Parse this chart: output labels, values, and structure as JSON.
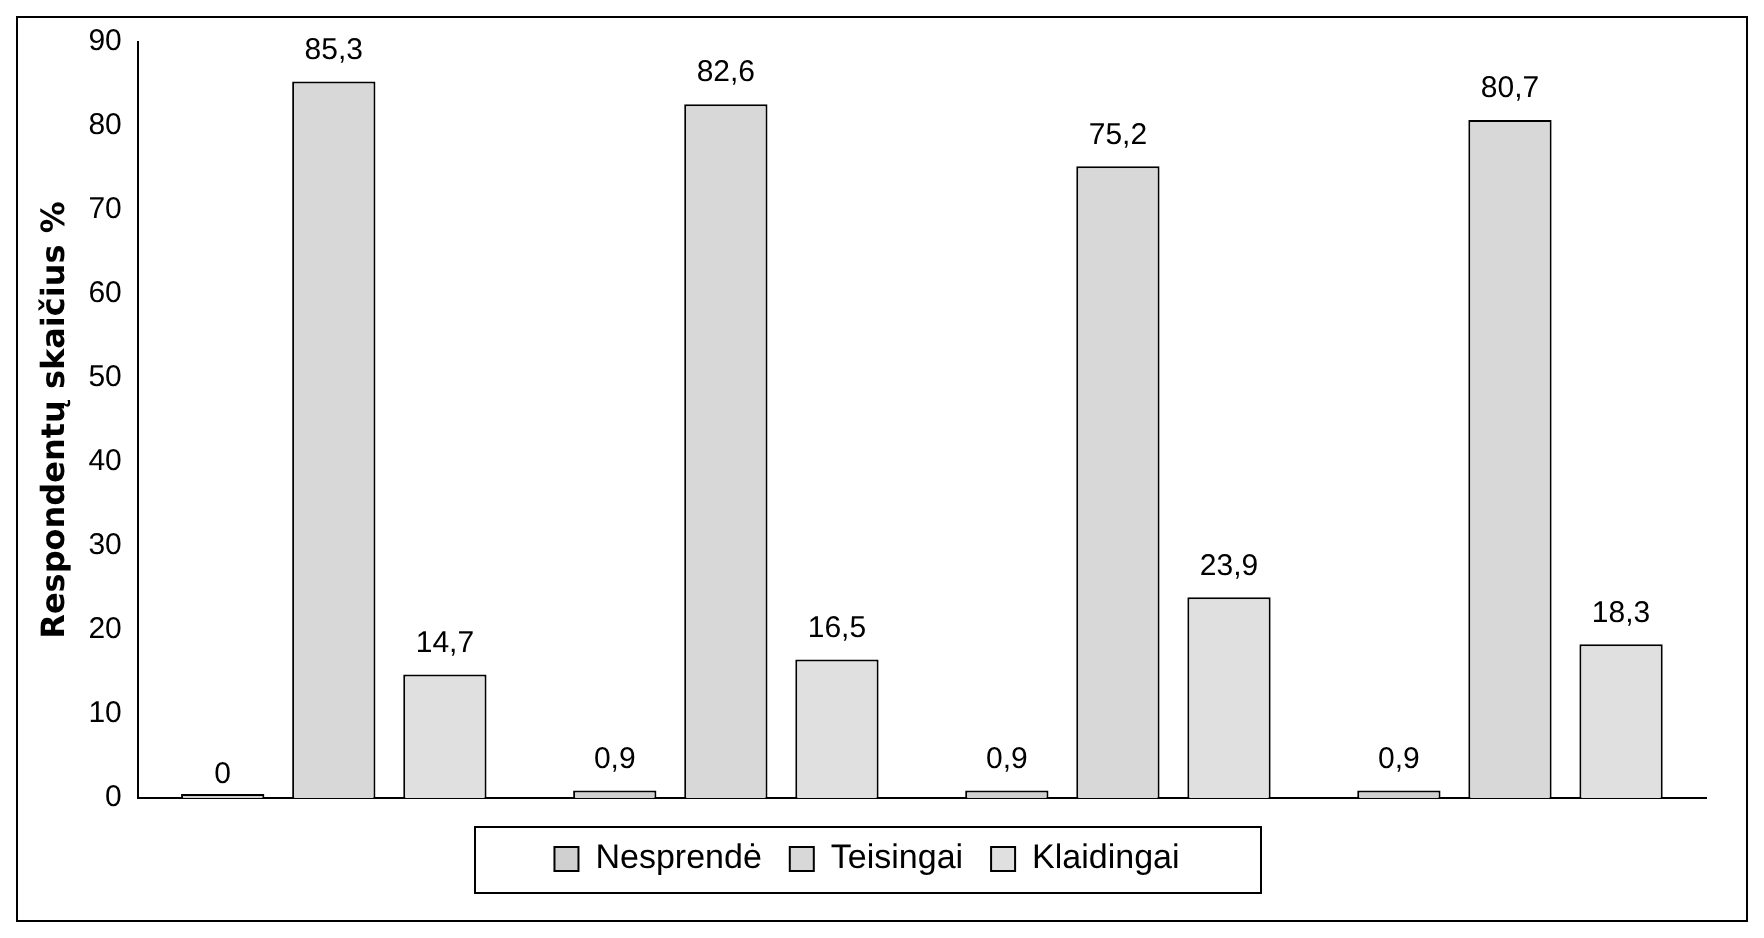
{
  "chart_data": {
    "type": "bar",
    "ylabel": "Respondentų skaičius %",
    "categories": [
      null,
      null,
      null,
      null
    ],
    "series": [
      {
        "name": "Nesprendė",
        "color": "#d0d0d0",
        "values": [
          0,
          0.9,
          0.9,
          0.9
        ],
        "value_labels": [
          "0",
          "0,9",
          "0,9",
          "0,9"
        ]
      },
      {
        "name": "Teisingai",
        "color": "#d8d8d8",
        "values": [
          85.3,
          82.6,
          75.2,
          80.7
        ],
        "value_labels": [
          "85,3",
          "82,6",
          "75,2",
          "80,7"
        ]
      },
      {
        "name": "Klaidingai",
        "color": "#e0e0e0",
        "values": [
          14.7,
          16.5,
          23.9,
          18.3
        ],
        "value_labels": [
          "14,7",
          "16,5",
          "23,9",
          "18,3"
        ]
      }
    ],
    "ylim": [
      0,
      90
    ],
    "yticks": [
      0,
      10,
      20,
      30,
      40,
      50,
      60,
      70,
      80,
      90
    ],
    "grid": false,
    "legend": "bottom"
  }
}
